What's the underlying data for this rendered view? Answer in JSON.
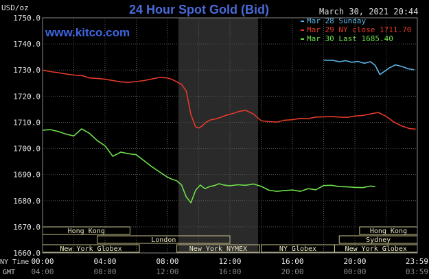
{
  "chart_data": {
    "type": "line",
    "title": "24 Hour Spot Gold (Bid)",
    "website": "www.kitco.com",
    "timestamp": "March 30, 2021 20:44",
    "unit_label": "USD/oz",
    "ylim": [
      1660,
      1750
    ],
    "y_ticks": [
      "1750.0",
      "1740.0",
      "1730.0",
      "1720.0",
      "1710.0",
      "1700.0",
      "1690.0",
      "1680.0",
      "1670.0",
      "1660.0"
    ],
    "x_ticks_ny": [
      "00:00",
      "04:00",
      "08:00",
      "12:00",
      "16:00",
      "20:00",
      "23:59"
    ],
    "x_ticks_gmt": [
      "04:00",
      "08:00",
      "12:00",
      "16:00",
      "20:00",
      "00:00",
      "03:59"
    ],
    "x_axis_left_labels": [
      "NY Time",
      "GMT"
    ],
    "shaded_hours": [
      8.7,
      13.8
    ],
    "sessions": [
      {
        "label": "Hong Kong",
        "row": 0,
        "start": 0,
        "end": 5.6
      },
      {
        "label": "London",
        "row": 1,
        "start": 3.5,
        "end": 12.0
      },
      {
        "label": "New York Globex",
        "row": 2,
        "start": 0,
        "end": 6.2
      },
      {
        "label": "New York NYMEX",
        "row": 2,
        "start": 8.6,
        "end": 13.9
      },
      {
        "label": "NY Globex",
        "row": 2,
        "start": 14.0,
        "end": 18.7
      },
      {
        "label": "Hong Kong",
        "row": 0,
        "start": 20.3,
        "end": 24.0
      },
      {
        "label": "Sydney",
        "row": 1,
        "start": 19.0,
        "end": 24.0
      },
      {
        "label": "New York Globex",
        "row": 2,
        "start": 18.7,
        "end": 24.0
      }
    ],
    "series": [
      {
        "name": "Mar 28 Sunday",
        "color": "#5ab4e6",
        "x": [
          18.0,
          18.6,
          19.0,
          19.4,
          19.8,
          20.2,
          20.6,
          21.0,
          21.3,
          21.6,
          21.9,
          22.2,
          22.6,
          23.0,
          23.4,
          23.8
        ],
        "y": [
          1733.8,
          1733.7,
          1733.2,
          1733.6,
          1733.0,
          1733.3,
          1732.6,
          1733.2,
          1731.8,
          1728.3,
          1729.5,
          1730.8,
          1732.0,
          1731.4,
          1730.5,
          1730.1
        ]
      },
      {
        "name": "Mar 29 NY close 1711.70",
        "color": "#e53a2a",
        "x": [
          0,
          0.5,
          1,
          1.5,
          2,
          2.5,
          3,
          3.5,
          4,
          4.5,
          5,
          5.5,
          6,
          6.5,
          7,
          7.5,
          8,
          8.3,
          8.6,
          8.9,
          9.2,
          9.5,
          9.8,
          10.0,
          10.2,
          10.5,
          10.8,
          11.1,
          11.5,
          11.8,
          12.2,
          12.6,
          13.0,
          13.5,
          14.0,
          14.5,
          15.0,
          15.5,
          16.0,
          16.5,
          17.0,
          17.5,
          18.0,
          18.5,
          19.0,
          19.5,
          20.0,
          20.5,
          21.0,
          21.5,
          22.0,
          22.5,
          23.0,
          23.5,
          23.9
        ],
        "y": [
          1730.0,
          1729.4,
          1729.0,
          1728.5,
          1728.1,
          1727.9,
          1727.0,
          1726.8,
          1726.5,
          1726.0,
          1725.5,
          1725.3,
          1725.6,
          1726.0,
          1726.6,
          1727.2,
          1727.0,
          1726.4,
          1725.5,
          1724.5,
          1722.0,
          1713.0,
          1708.2,
          1707.8,
          1708.5,
          1710.2,
          1711.0,
          1711.3,
          1712.1,
          1712.8,
          1713.4,
          1714.2,
          1714.6,
          1713.2,
          1710.6,
          1710.3,
          1710.1,
          1710.8,
          1711.0,
          1711.5,
          1711.4,
          1712.0,
          1712.1,
          1712.2,
          1712.0,
          1711.9,
          1712.4,
          1712.6,
          1713.2,
          1713.8,
          1712.3,
          1710.1,
          1708.6,
          1707.6,
          1707.4
        ]
      },
      {
        "name": "Mar 30 Last 1685.40",
        "color": "#6ee04a",
        "x": [
          0,
          0.5,
          1,
          1.5,
          2,
          2.5,
          3,
          3.5,
          4,
          4.5,
          5,
          5.5,
          6,
          6.5,
          7,
          7.5,
          8,
          8.3,
          8.6,
          8.9,
          9.2,
          9.5,
          9.8,
          10.1,
          10.4,
          10.7,
          11.0,
          11.3,
          11.6,
          12.0,
          12.5,
          13.0,
          13.5,
          14.0,
          14.5,
          15.0,
          15.5,
          16.0,
          16.5,
          17.0,
          17.5,
          18.0,
          18.5,
          19.0,
          19.5,
          20.0,
          20.5,
          21.0,
          21.3
        ],
        "y": [
          1707.0,
          1707.2,
          1706.5,
          1705.5,
          1704.8,
          1707.5,
          1705.8,
          1703.0,
          1701.0,
          1697.0,
          1698.6,
          1698.0,
          1697.6,
          1695.3,
          1693.0,
          1691.0,
          1689.0,
          1688.2,
          1687.6,
          1686.0,
          1681.5,
          1679.2,
          1684.0,
          1686.0,
          1684.6,
          1685.4,
          1685.8,
          1686.5,
          1686.0,
          1685.7,
          1686.1,
          1685.9,
          1686.4,
          1685.5,
          1684.0,
          1683.6,
          1683.9,
          1684.1,
          1683.6,
          1684.6,
          1684.2,
          1685.8,
          1685.9,
          1685.4,
          1685.3,
          1685.1,
          1685.0,
          1685.6,
          1685.4
        ]
      }
    ]
  }
}
